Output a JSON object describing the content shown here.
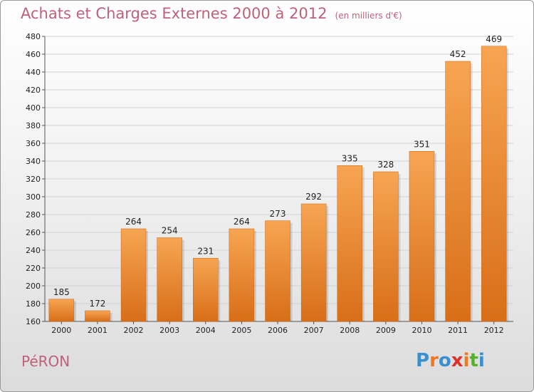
{
  "chart_data": {
    "type": "bar",
    "title": "Achats et Charges Externes 2000 à 2012",
    "subtitle": "(en milliers d'€)",
    "categories": [
      "2000",
      "2001",
      "2002",
      "2003",
      "2004",
      "2005",
      "2006",
      "2007",
      "2008",
      "2009",
      "2010",
      "2011",
      "2012"
    ],
    "values": [
      185,
      172,
      264,
      254,
      231,
      264,
      273,
      292,
      335,
      328,
      351,
      452,
      469
    ],
    "ylim": [
      160,
      480
    ],
    "yticks": [
      160,
      180,
      200,
      220,
      240,
      260,
      280,
      300,
      320,
      340,
      360,
      380,
      400,
      420,
      440,
      460,
      480
    ],
    "grid": true,
    "bar_color": "#f08a30"
  },
  "commune": "PéRON",
  "logo": {
    "text": "Proxiti",
    "letters": [
      "P",
      "r",
      "o",
      "x",
      "i",
      "t",
      "i"
    ],
    "colors": [
      "#3a8fd0",
      "#f07820",
      "#3a8fd0",
      "#e0302a",
      "#f07820",
      "#58b030",
      "#3a8fd0"
    ]
  }
}
